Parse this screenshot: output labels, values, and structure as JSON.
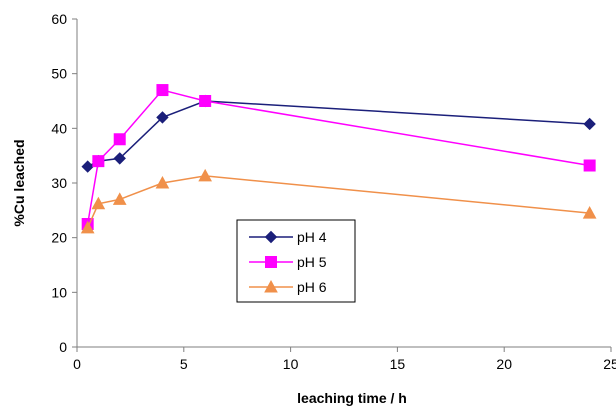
{
  "chart_data": {
    "type": "line",
    "xlabel": "leaching time / h",
    "ylabel": "%Cu leached",
    "xlim": [
      0,
      25
    ],
    "ylim": [
      0,
      60
    ],
    "x_ticks": [
      0,
      5,
      10,
      15,
      20,
      25
    ],
    "y_ticks": [
      0,
      10,
      20,
      30,
      40,
      50,
      60
    ],
    "grid": false,
    "legend_position": "center-left",
    "series": [
      {
        "name": "pH 4",
        "color": "#1b1f7a",
        "marker": "diamond",
        "x": [
          0.5,
          1,
          2,
          4,
          6,
          24
        ],
        "y": [
          33,
          34,
          34.5,
          42,
          45,
          40.8
        ]
      },
      {
        "name": "pH 5",
        "color": "#ff00ff",
        "marker": "square",
        "x": [
          0.5,
          1,
          2,
          4,
          6,
          24
        ],
        "y": [
          22.5,
          34,
          38,
          47,
          45,
          33.2
        ]
      },
      {
        "name": "pH 6",
        "color": "#f0904a",
        "marker": "triangle",
        "x": [
          0.5,
          1,
          2,
          4,
          6,
          24
        ],
        "y": [
          21.8,
          26.2,
          27,
          30,
          31.3,
          24.5
        ]
      }
    ]
  }
}
